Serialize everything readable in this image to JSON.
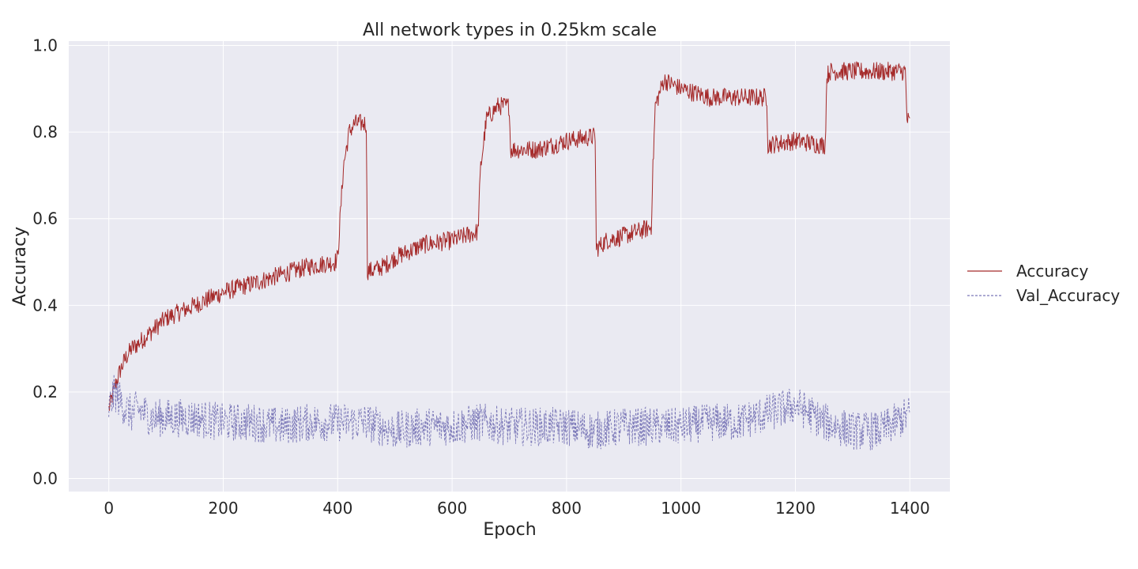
{
  "chart_data": {
    "type": "line",
    "title": "All network types in 0.25km scale",
    "xlabel": "Epoch",
    "ylabel": "Accuracy",
    "xlim": [
      -70,
      1470
    ],
    "ylim": [
      -0.03,
      1.01
    ],
    "xticks": [
      0,
      200,
      400,
      600,
      800,
      1000,
      1200,
      1400
    ],
    "yticks": [
      0.0,
      0.2,
      0.4,
      0.6,
      0.8,
      1.0
    ],
    "xtick_labels": [
      "0",
      "200",
      "400",
      "600",
      "800",
      "1000",
      "1200",
      "1400"
    ],
    "ytick_labels": [
      "0.0",
      "0.2",
      "0.4",
      "0.6",
      "0.8",
      "1.0"
    ],
    "grid": true,
    "legend_position": "right",
    "series": [
      {
        "name": "Accuracy",
        "color": "#a52a2a",
        "style": "solid",
        "x": [
          0,
          10,
          20,
          30,
          40,
          50,
          75,
          100,
          150,
          200,
          250,
          300,
          350,
          395,
          400,
          410,
          420,
          430,
          440,
          450,
          452,
          460,
          480,
          500,
          550,
          600,
          645,
          650,
          660,
          680,
          700,
          702,
          720,
          750,
          800,
          848,
          850,
          852,
          870,
          900,
          948,
          950,
          955,
          970,
          1000,
          1050,
          1100,
          1148,
          1150,
          1152,
          1200,
          1248,
          1252,
          1255,
          1260,
          1300,
          1350,
          1392,
          1395,
          1400
        ],
        "y": [
          0.16,
          0.21,
          0.25,
          0.28,
          0.3,
          0.31,
          0.34,
          0.37,
          0.4,
          0.43,
          0.45,
          0.47,
          0.49,
          0.5,
          0.51,
          0.72,
          0.8,
          0.82,
          0.82,
          0.82,
          0.48,
          0.48,
          0.49,
          0.51,
          0.54,
          0.55,
          0.57,
          0.72,
          0.83,
          0.86,
          0.86,
          0.76,
          0.76,
          0.76,
          0.78,
          0.79,
          0.79,
          0.53,
          0.55,
          0.56,
          0.58,
          0.68,
          0.86,
          0.92,
          0.9,
          0.88,
          0.88,
          0.88,
          0.88,
          0.77,
          0.78,
          0.77,
          0.77,
          0.93,
          0.94,
          0.94,
          0.94,
          0.94,
          0.83,
          0.82
        ]
      },
      {
        "name": "Val_Accuracy",
        "color": "#7b78b8",
        "style": "dashed",
        "x": [
          0,
          10,
          20,
          30,
          40,
          50,
          65,
          75,
          100,
          150,
          200,
          250,
          300,
          350,
          400,
          450,
          500,
          550,
          600,
          650,
          700,
          750,
          800,
          850,
          900,
          950,
          1000,
          1050,
          1100,
          1150,
          1200,
          1250,
          1300,
          1350,
          1400
        ],
        "y": [
          0.16,
          0.2,
          0.18,
          0.16,
          0.15,
          0.16,
          0.15,
          0.14,
          0.14,
          0.14,
          0.13,
          0.13,
          0.12,
          0.13,
          0.13,
          0.13,
          0.11,
          0.12,
          0.12,
          0.13,
          0.12,
          0.12,
          0.12,
          0.11,
          0.12,
          0.12,
          0.12,
          0.13,
          0.13,
          0.15,
          0.17,
          0.13,
          0.11,
          0.11,
          0.15
        ]
      }
    ]
  }
}
